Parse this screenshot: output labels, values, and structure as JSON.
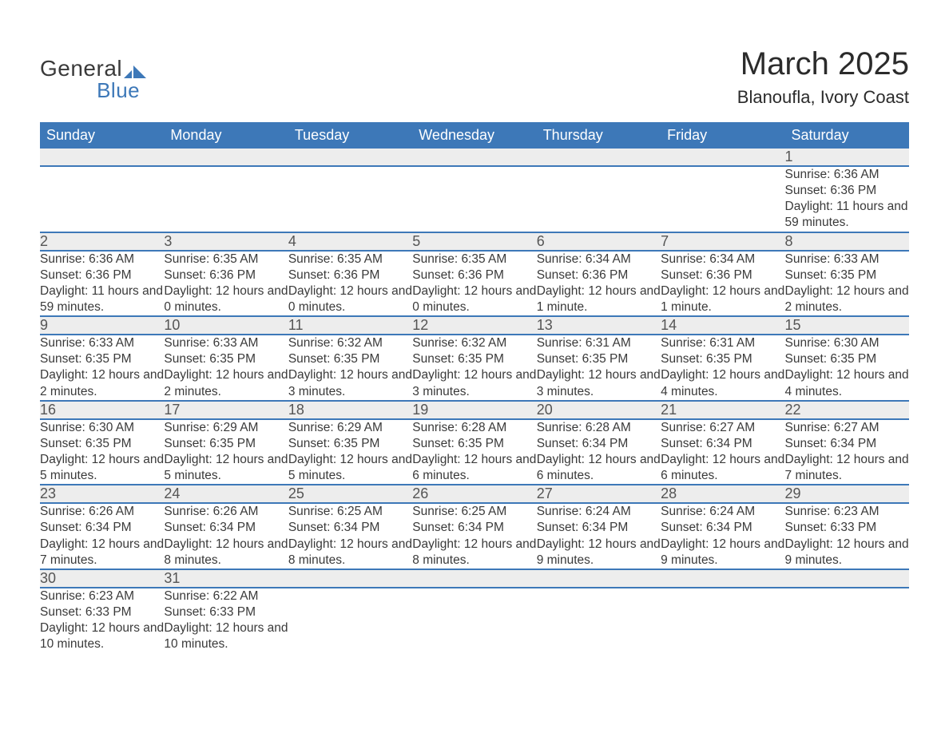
{
  "logo": {
    "text1": "General",
    "text2": "Blue",
    "icon_color": "#3d78b8"
  },
  "title": "March 2025",
  "location": "Blanoufla, Ivory Coast",
  "colors": {
    "header_bg": "#3d78b8",
    "header_text": "#ffffff",
    "daynum_bg": "#ededed",
    "border": "#3d78b8",
    "body_text": "#3a3a3a"
  },
  "day_headers": [
    "Sunday",
    "Monday",
    "Tuesday",
    "Wednesday",
    "Thursday",
    "Friday",
    "Saturday"
  ],
  "weeks": [
    [
      null,
      null,
      null,
      null,
      null,
      null,
      {
        "n": "1",
        "sr": "6:36 AM",
        "ss": "6:36 PM",
        "dl": "11 hours and 59 minutes."
      }
    ],
    [
      {
        "n": "2",
        "sr": "6:36 AM",
        "ss": "6:36 PM",
        "dl": "11 hours and 59 minutes."
      },
      {
        "n": "3",
        "sr": "6:35 AM",
        "ss": "6:36 PM",
        "dl": "12 hours and 0 minutes."
      },
      {
        "n": "4",
        "sr": "6:35 AM",
        "ss": "6:36 PM",
        "dl": "12 hours and 0 minutes."
      },
      {
        "n": "5",
        "sr": "6:35 AM",
        "ss": "6:36 PM",
        "dl": "12 hours and 0 minutes."
      },
      {
        "n": "6",
        "sr": "6:34 AM",
        "ss": "6:36 PM",
        "dl": "12 hours and 1 minute."
      },
      {
        "n": "7",
        "sr": "6:34 AM",
        "ss": "6:36 PM",
        "dl": "12 hours and 1 minute."
      },
      {
        "n": "8",
        "sr": "6:33 AM",
        "ss": "6:35 PM",
        "dl": "12 hours and 2 minutes."
      }
    ],
    [
      {
        "n": "9",
        "sr": "6:33 AM",
        "ss": "6:35 PM",
        "dl": "12 hours and 2 minutes."
      },
      {
        "n": "10",
        "sr": "6:33 AM",
        "ss": "6:35 PM",
        "dl": "12 hours and 2 minutes."
      },
      {
        "n": "11",
        "sr": "6:32 AM",
        "ss": "6:35 PM",
        "dl": "12 hours and 3 minutes."
      },
      {
        "n": "12",
        "sr": "6:32 AM",
        "ss": "6:35 PM",
        "dl": "12 hours and 3 minutes."
      },
      {
        "n": "13",
        "sr": "6:31 AM",
        "ss": "6:35 PM",
        "dl": "12 hours and 3 minutes."
      },
      {
        "n": "14",
        "sr": "6:31 AM",
        "ss": "6:35 PM",
        "dl": "12 hours and 4 minutes."
      },
      {
        "n": "15",
        "sr": "6:30 AM",
        "ss": "6:35 PM",
        "dl": "12 hours and 4 minutes."
      }
    ],
    [
      {
        "n": "16",
        "sr": "6:30 AM",
        "ss": "6:35 PM",
        "dl": "12 hours and 5 minutes."
      },
      {
        "n": "17",
        "sr": "6:29 AM",
        "ss": "6:35 PM",
        "dl": "12 hours and 5 minutes."
      },
      {
        "n": "18",
        "sr": "6:29 AM",
        "ss": "6:35 PM",
        "dl": "12 hours and 5 minutes."
      },
      {
        "n": "19",
        "sr": "6:28 AM",
        "ss": "6:35 PM",
        "dl": "12 hours and 6 minutes."
      },
      {
        "n": "20",
        "sr": "6:28 AM",
        "ss": "6:34 PM",
        "dl": "12 hours and 6 minutes."
      },
      {
        "n": "21",
        "sr": "6:27 AM",
        "ss": "6:34 PM",
        "dl": "12 hours and 6 minutes."
      },
      {
        "n": "22",
        "sr": "6:27 AM",
        "ss": "6:34 PM",
        "dl": "12 hours and 7 minutes."
      }
    ],
    [
      {
        "n": "23",
        "sr": "6:26 AM",
        "ss": "6:34 PM",
        "dl": "12 hours and 7 minutes."
      },
      {
        "n": "24",
        "sr": "6:26 AM",
        "ss": "6:34 PM",
        "dl": "12 hours and 8 minutes."
      },
      {
        "n": "25",
        "sr": "6:25 AM",
        "ss": "6:34 PM",
        "dl": "12 hours and 8 minutes."
      },
      {
        "n": "26",
        "sr": "6:25 AM",
        "ss": "6:34 PM",
        "dl": "12 hours and 8 minutes."
      },
      {
        "n": "27",
        "sr": "6:24 AM",
        "ss": "6:34 PM",
        "dl": "12 hours and 9 minutes."
      },
      {
        "n": "28",
        "sr": "6:24 AM",
        "ss": "6:34 PM",
        "dl": "12 hours and 9 minutes."
      },
      {
        "n": "29",
        "sr": "6:23 AM",
        "ss": "6:33 PM",
        "dl": "12 hours and 9 minutes."
      }
    ],
    [
      {
        "n": "30",
        "sr": "6:23 AM",
        "ss": "6:33 PM",
        "dl": "12 hours and 10 minutes."
      },
      {
        "n": "31",
        "sr": "6:22 AM",
        "ss": "6:33 PM",
        "dl": "12 hours and 10 minutes."
      },
      null,
      null,
      null,
      null,
      null
    ]
  ],
  "labels": {
    "sunrise": "Sunrise: ",
    "sunset": "Sunset: ",
    "daylight": "Daylight: "
  }
}
